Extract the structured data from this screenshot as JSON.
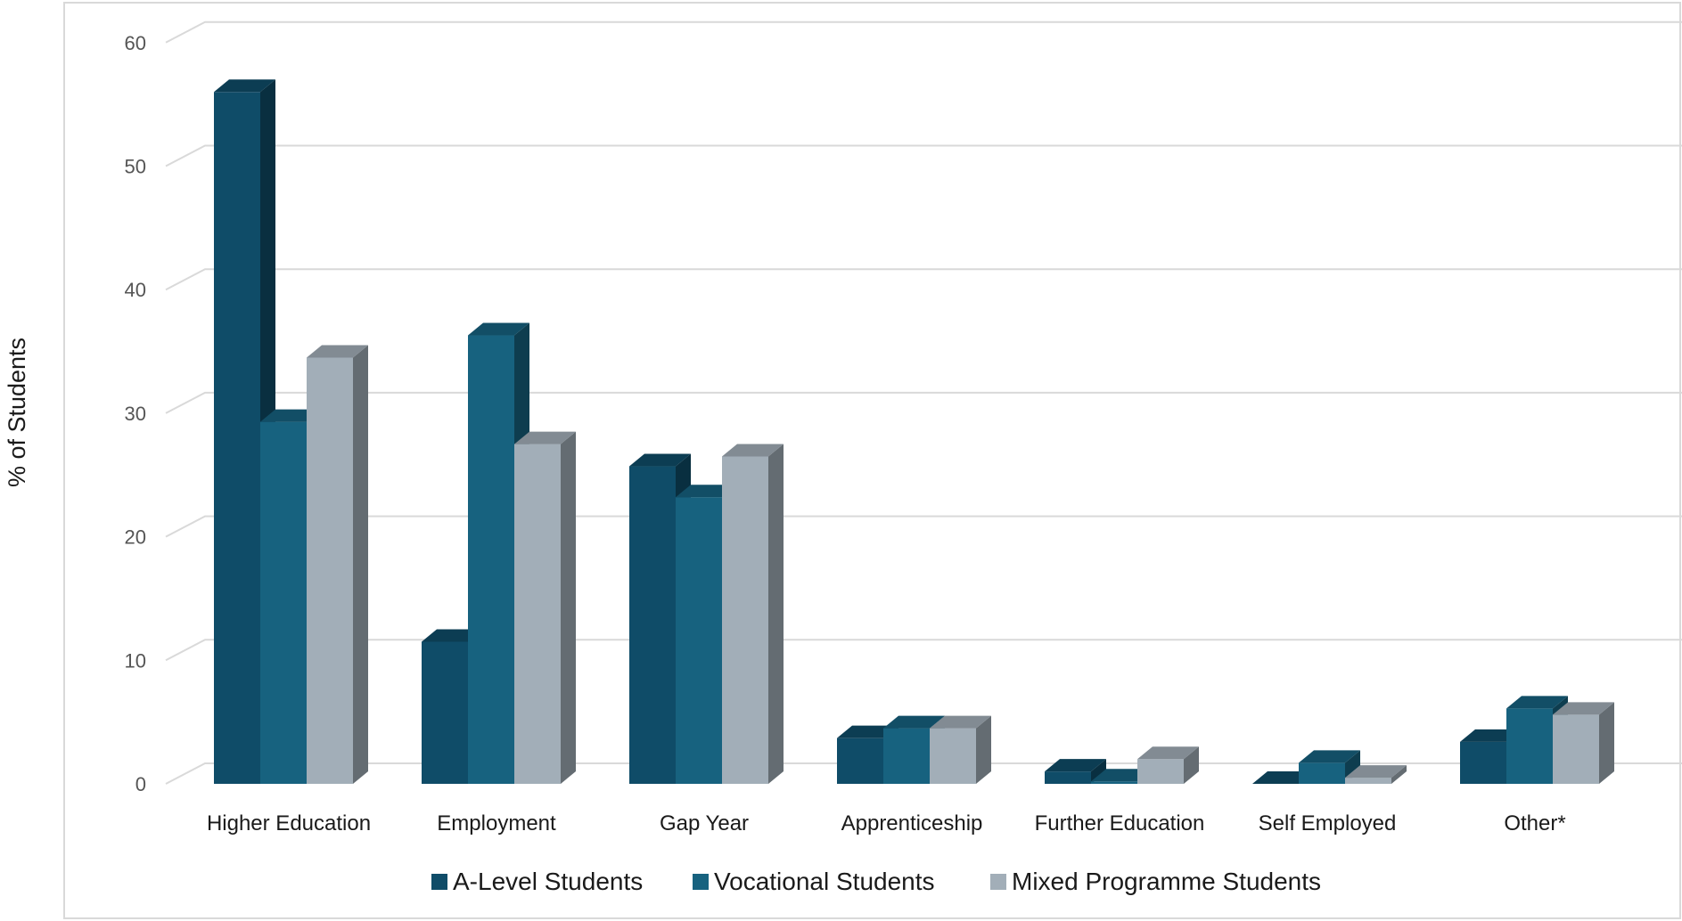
{
  "chart_data": {
    "type": "bar",
    "title": "",
    "xlabel": "",
    "ylabel": "% of Students",
    "ylim": [
      0,
      60
    ],
    "yticks": [
      0,
      10,
      20,
      30,
      40,
      50,
      60
    ],
    "grid": true,
    "legend_position": "bottom",
    "categories": [
      "Higher Education",
      "Employment",
      "Gap Year",
      "Apprenticeship",
      "Further Education",
      "Self Employed",
      "Other*"
    ],
    "series": [
      {
        "name": "A-Level Students",
        "color": "#0f4c68",
        "values": [
          56,
          11.5,
          25.7,
          3.7,
          1,
          0,
          3.4
        ]
      },
      {
        "name": "Vocational Students",
        "color": "#17627f",
        "values": [
          29.3,
          36.3,
          23.2,
          4.5,
          0.2,
          1.7,
          6.1
        ]
      },
      {
        "name": "Mixed Programme Students",
        "color": "#a2aeb8",
        "values": [
          34.5,
          27.5,
          26.5,
          4.5,
          2,
          0.5,
          5.6
        ]
      }
    ]
  }
}
